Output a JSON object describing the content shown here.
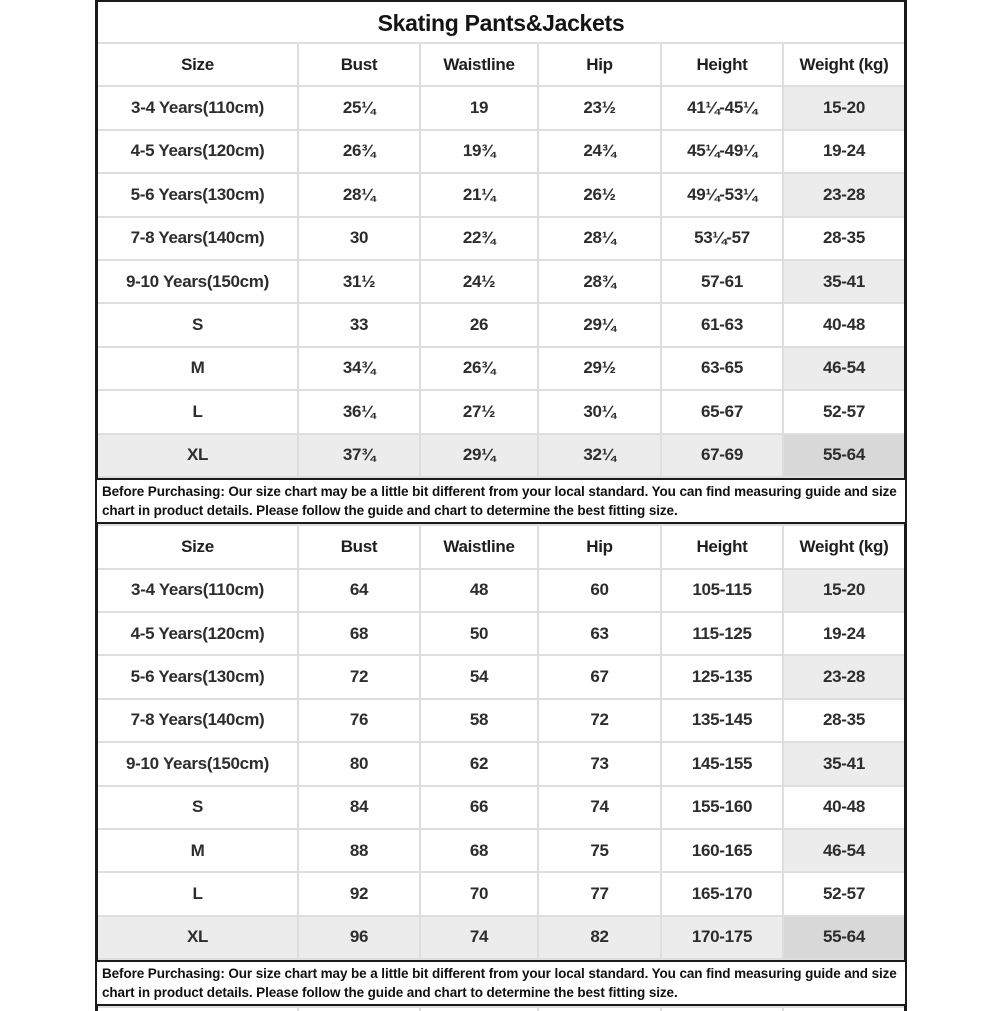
{
  "title": "Skating Pants&Jackets",
  "columns": [
    "Size",
    "Bust",
    "Waistline",
    "Hip",
    "Height",
    "Weight (kg)"
  ],
  "column_keys": [
    "size",
    "bust",
    "waistline",
    "hip",
    "height",
    "weight"
  ],
  "notes": [
    "Before Purchasing: Our size chart may be a little bit different from your local standard. You can find measuring guide and size chart in product details. Please follow the guide and chart to determine the best fitting size.",
    "Before Purchasing: Our size chart may be a little bit different from your local standard. You can find measuring guide and size chart in product details. Please follow the guide and chart to determine the best fitting size."
  ],
  "tables": [
    {
      "name": "size-table-inches",
      "rows": [
        [
          "3-4 Years(110cm)",
          "25¼",
          "19",
          "23½",
          "41¼-45¼",
          "15-20"
        ],
        [
          "4-5 Years(120cm)",
          "26¾",
          "19¾",
          "24¾",
          "45¼-49¼",
          "19-24"
        ],
        [
          "5-6 Years(130cm)",
          "28¼",
          "21¼",
          "26½",
          "49¼-53¼",
          "23-28"
        ],
        [
          "7-8 Years(140cm)",
          "30",
          "22¾",
          "28¼",
          "53¼-57",
          "28-35"
        ],
        [
          "9-10 Years(150cm)",
          "31½",
          "24½",
          "28¾",
          "57-61",
          "35-41"
        ],
        [
          "S",
          "33",
          "26",
          "29¼",
          "61-63",
          "40-48"
        ],
        [
          "M",
          "34¾",
          "26¾",
          "29½",
          "63-65",
          "46-54"
        ],
        [
          "L",
          "36¼",
          "27½",
          "30¼",
          "65-67",
          "52-57"
        ],
        [
          "XL",
          "37¾",
          "29¼",
          "32¼",
          "67-69",
          "55-64"
        ]
      ]
    },
    {
      "name": "size-table-cm",
      "rows": [
        [
          "3-4 Years(110cm)",
          "64",
          "48",
          "60",
          "105-115",
          "15-20"
        ],
        [
          "4-5 Years(120cm)",
          "68",
          "50",
          "63",
          "115-125",
          "19-24"
        ],
        [
          "5-6 Years(130cm)",
          "72",
          "54",
          "67",
          "125-135",
          "23-28"
        ],
        [
          "7-8 Years(140cm)",
          "76",
          "58",
          "72",
          "135-145",
          "28-35"
        ],
        [
          "9-10 Years(150cm)",
          "80",
          "62",
          "73",
          "145-155",
          "35-41"
        ],
        [
          "S",
          "84",
          "66",
          "74",
          "155-160",
          "40-48"
        ],
        [
          "M",
          "88",
          "68",
          "75",
          "160-165",
          "46-54"
        ],
        [
          "L",
          "92",
          "70",
          "77",
          "165-170",
          "52-57"
        ],
        [
          "XL",
          "96",
          "74",
          "82",
          "170-175",
          "55-64"
        ]
      ]
    }
  ],
  "colors": {
    "border_black": "#1a1a1a",
    "grid_line": "#dedede",
    "row_highlight": "#ececec",
    "weight_dark": "#d8d8d8"
  }
}
